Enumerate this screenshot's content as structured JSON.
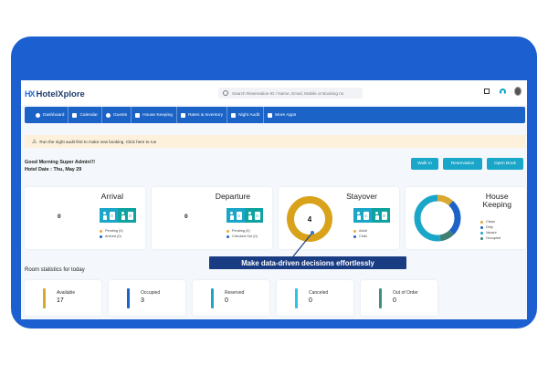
{
  "app": {
    "logo_mark": "HX",
    "name": "HotelXplore",
    "search_placeholder": "Search Reservation-ID / Name, Email, Mobile or Booking no"
  },
  "nav": {
    "items": [
      {
        "label": "Dashboard",
        "icon": "dashboard-icon"
      },
      {
        "label": "Calendar",
        "icon": "calendar-icon"
      },
      {
        "label": "Guests",
        "icon": "guests-icon"
      },
      {
        "label": "House Keeping",
        "icon": "house-keeping-icon"
      },
      {
        "label": "Rates & Inventory",
        "icon": "rates-icon"
      },
      {
        "label": "Night Audit",
        "icon": "night-audit-icon"
      },
      {
        "label": "More Apps",
        "icon": "apps-grid-icon"
      }
    ]
  },
  "alert": {
    "icon": "⚠",
    "text": "Run the night audit first to make new booking. Click here to run"
  },
  "greeting": {
    "line1": "Good Morning Super Admin!!!",
    "line2": "Hotel Date : Thu, May 29"
  },
  "actions": {
    "walk_in": "Walk In",
    "reservation": "Reservation",
    "open_book": "Open Book"
  },
  "cards": {
    "arrival": {
      "title": "Arrival",
      "count": "0",
      "badge1": "0",
      "badge2": "0",
      "legend": [
        {
          "label": "Pending (0)",
          "color": "#f0a830"
        },
        {
          "label": "Arrived (0)",
          "color": "#1b63c6"
        }
      ]
    },
    "departure": {
      "title": "Departure",
      "count": "0",
      "badge1": "0",
      "badge2": "0",
      "legend": [
        {
          "label": "Pending (0)",
          "color": "#f0a830"
        },
        {
          "label": "Checked Out (0)",
          "color": "#1b63c6"
        }
      ]
    },
    "stayover": {
      "title": "Stayover",
      "count": "4",
      "badge1": "4",
      "badge2": "0",
      "legend": [
        {
          "label": "Adult",
          "color": "#f0a830"
        },
        {
          "label": "Child",
          "color": "#1b63c6"
        }
      ]
    },
    "housekeeping": {
      "title_line1": "House",
      "title_line2": "Keeping",
      "legend": [
        {
          "label": "Clean",
          "color": "#d8a830"
        },
        {
          "label": "Dirty",
          "color": "#1b63c6"
        },
        {
          "label": "Vacant",
          "color": "#1aa6c9"
        },
        {
          "label": "Occupied",
          "color": "#3f7f74"
        }
      ]
    }
  },
  "overlay_text": "Make data-driven decisions effortlessly",
  "room_stats": {
    "title": "Room statistics for today",
    "items": [
      {
        "label": "Available",
        "value": "17",
        "color": "#d8a830"
      },
      {
        "label": "Occupied",
        "value": "3",
        "color": "#1b63c6"
      },
      {
        "label": "Reserved",
        "value": "0",
        "color": "#1aa6c9"
      },
      {
        "label": "Canceled",
        "value": "0",
        "color": "#2ec4e8"
      },
      {
        "label": "Out of Order",
        "value": "0",
        "color": "#3f8f7f"
      }
    ]
  },
  "colors": {
    "brand_blue": "#1b63c6",
    "frame_blue": "#1b5fd0",
    "teal_button": "#1aa6c9",
    "overlay_navy": "#1a3c82",
    "alert_bg": "#fdf1dc"
  }
}
